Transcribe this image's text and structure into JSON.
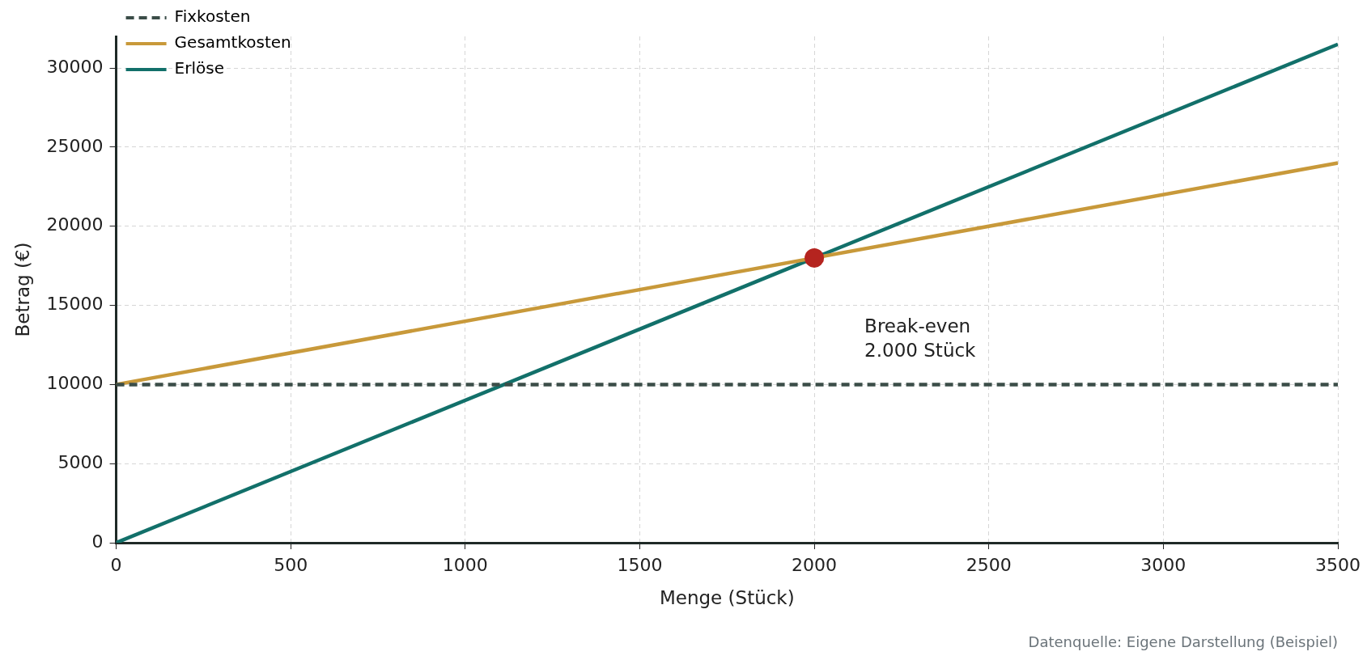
{
  "chart_data": {
    "type": "line",
    "xlabel": "Menge (Stück)",
    "ylabel": "Betrag (€)",
    "xlim": [
      0,
      3500
    ],
    "xticks": [
      0,
      500,
      1000,
      1500,
      2000,
      2500,
      3000,
      3500
    ],
    "ylim": [
      0,
      32000
    ],
    "yticks": [
      0,
      5000,
      10000,
      15000,
      20000,
      25000,
      30000
    ],
    "grid": true,
    "legend": "top left",
    "marker": "none",
    "series": [
      {
        "name": "Fixkosten",
        "color": "#3b4d48",
        "x": [
          0,
          3500
        ],
        "values": [
          10000,
          10000
        ],
        "line_style": "dashed"
      },
      {
        "name": "Gesamtkosten",
        "color": "#c8993a",
        "x": [
          0,
          3500
        ],
        "values": [
          10000,
          24000
        ],
        "line_style": "solid"
      },
      {
        "name": "Erlöse",
        "color": "#12706a",
        "x": [
          0,
          3500
        ],
        "values": [
          0,
          31500
        ],
        "line_style": "solid"
      },
      {
        "type": "scatter",
        "color": "#b5241f",
        "x": [
          2000
        ],
        "values": [
          18000
        ],
        "marker": "circle"
      }
    ],
    "annotations": [
      "Break-even\n2.000 Stück",
      "Datenquelle: Eigene Darstellung (Beispiel)"
    ]
  }
}
